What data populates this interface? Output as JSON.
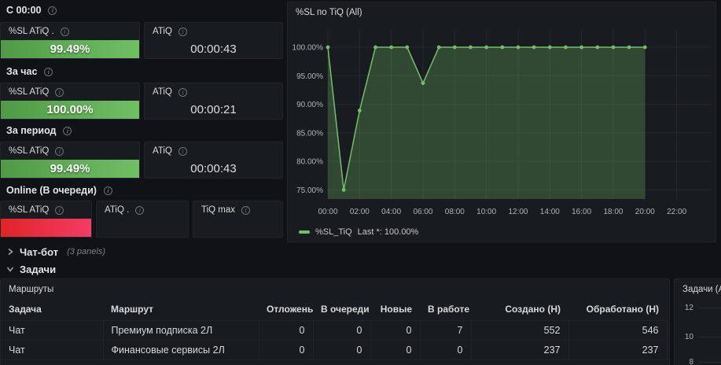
{
  "sections": {
    "since": {
      "label": "С 00:00"
    },
    "hour": {
      "label": "За час"
    },
    "period": {
      "label": "За период"
    },
    "online": {
      "label": "Online (В очереди)"
    }
  },
  "stat_panels": {
    "since_sl": {
      "title": "%SL ATiQ .",
      "value": "99.49%"
    },
    "since_atiq": {
      "title": "ATiQ",
      "value": "00:00:43"
    },
    "hour_sl": {
      "title": "%SL ATiQ",
      "value": "100.00%"
    },
    "hour_atiq": {
      "title": "ATiQ",
      "value": "00:00:21"
    },
    "period_sl": {
      "title": "%SL ATiQ",
      "value": "99.49%"
    },
    "period_atiq": {
      "title": "ATiQ",
      "value": "00:00:43"
    },
    "online_sl": {
      "title": "%SL ATiQ",
      "value": ""
    },
    "online_atiq": {
      "title": "ATiQ .",
      "value": ""
    },
    "online_tiq_max": {
      "title": "TiQ max",
      "value": ""
    }
  },
  "colors": {
    "green": "#73bf69",
    "green_bar_gradient_start": "#4f9b46",
    "green_bar_gradient_end": "#6fbf63",
    "red_bar_gradient_start": "#e02428",
    "red_bar_gradient_end": "#f43c64",
    "panel_bg": "#181b1f",
    "page_bg": "#111217"
  },
  "rows": {
    "chatbot": {
      "label": "Чат-бот",
      "meta": "(3 panels)"
    },
    "tasks": {
      "label": "Задачи"
    }
  },
  "chart_data": {
    "type": "area",
    "title": "%SL по TiQ (All)",
    "xlabel": "",
    "ylabel": "",
    "ylim": [
      75,
      100
    ],
    "grid": true,
    "line_color": "#73bf69",
    "x_hours": [
      0,
      1,
      2,
      3,
      4,
      5,
      6,
      7,
      8,
      9,
      10,
      11,
      12,
      13,
      14,
      15,
      16,
      17,
      18,
      19,
      20
    ],
    "values": [
      100,
      75,
      88.9,
      100,
      100,
      100,
      93.7,
      100,
      100,
      100,
      100,
      100,
      100,
      100,
      100,
      100,
      100,
      100,
      100,
      100,
      100
    ],
    "y_ticks": [
      {
        "value": 100,
        "label": "100.00%"
      },
      {
        "value": 95,
        "label": "95.00%"
      },
      {
        "value": 90,
        "label": "90.00%"
      },
      {
        "value": 85,
        "label": "85.00%"
      },
      {
        "value": 80,
        "label": "80.00%"
      },
      {
        "value": 75,
        "label": "75.00%"
      }
    ],
    "x_ticks": [
      {
        "hour": 0,
        "label": "00:00"
      },
      {
        "hour": 2,
        "label": "02:00"
      },
      {
        "hour": 4,
        "label": "04:00"
      },
      {
        "hour": 6,
        "label": "06:00"
      },
      {
        "hour": 8,
        "label": "08:00"
      },
      {
        "hour": 10,
        "label": "10:00"
      },
      {
        "hour": 12,
        "label": "12:00"
      },
      {
        "hour": 14,
        "label": "14:00"
      },
      {
        "hour": 16,
        "label": "16:00"
      },
      {
        "hour": 18,
        "label": "18:00"
      },
      {
        "hour": 20,
        "label": "20:00"
      },
      {
        "hour": 22,
        "label": "22:00"
      }
    ],
    "legend": {
      "position": "bottom",
      "series_label": "%SL_TiQ",
      "stat": "Last *: 100.00%"
    }
  },
  "routes_table": {
    "title": "Маршруты",
    "columns": [
      "Задача",
      "Маршрут",
      "Отложены",
      "В очереди",
      "Новые",
      "В работе",
      "Создано (Н)",
      "Обработано (Н)"
    ],
    "rows": [
      [
        "Чат",
        "Премиум подписка 2Л",
        "0",
        "0",
        "0",
        "7",
        "552",
        "546"
      ],
      [
        "Чат",
        "Финансовые сервисы 2Л",
        "0",
        "0",
        "0",
        "0",
        "237",
        "237"
      ]
    ]
  },
  "tasks_panel": {
    "title": "Задачи (All)",
    "y_ticks": [
      "12",
      "10",
      "8"
    ]
  }
}
